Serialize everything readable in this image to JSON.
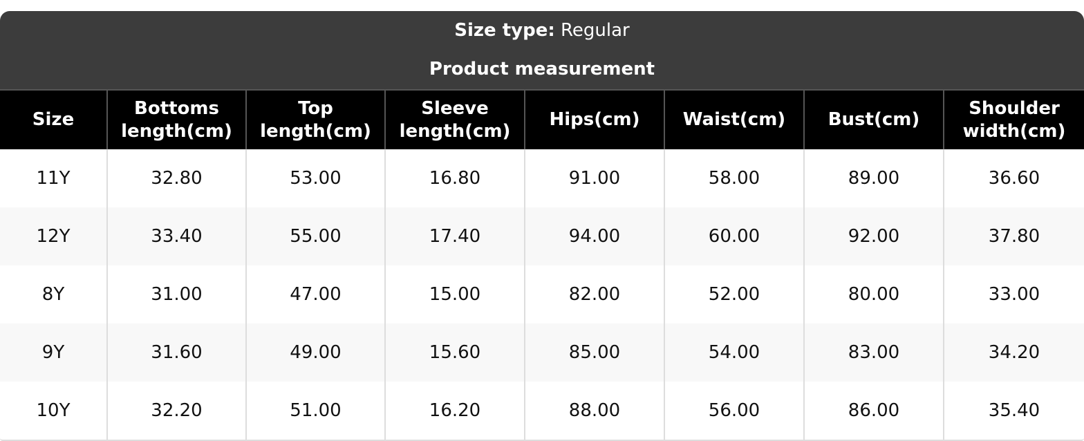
{
  "size_type_label": "Size type:",
  "size_type_value": "Regular",
  "section_title": "Product measurement",
  "columns": [
    "Size",
    "Bottoms length(cm)",
    "Top length(cm)",
    "Sleeve length(cm)",
    "Hips(cm)",
    "Waist(cm)",
    "Bust(cm)",
    "Shoulder width(cm)"
  ],
  "rows": [
    [
      "11Y",
      "32.80",
      "53.00",
      "16.80",
      "91.00",
      "58.00",
      "89.00",
      "36.60"
    ],
    [
      "12Y",
      "33.40",
      "55.00",
      "17.40",
      "94.00",
      "60.00",
      "92.00",
      "37.80"
    ],
    [
      "8Y",
      "31.00",
      "47.00",
      "15.00",
      "82.00",
      "52.00",
      "80.00",
      "33.00"
    ],
    [
      "9Y",
      "31.60",
      "49.00",
      "15.60",
      "85.00",
      "54.00",
      "83.00",
      "34.20"
    ],
    [
      "10Y",
      "32.20",
      "51.00",
      "16.20",
      "88.00",
      "56.00",
      "86.00",
      "35.40"
    ]
  ]
}
